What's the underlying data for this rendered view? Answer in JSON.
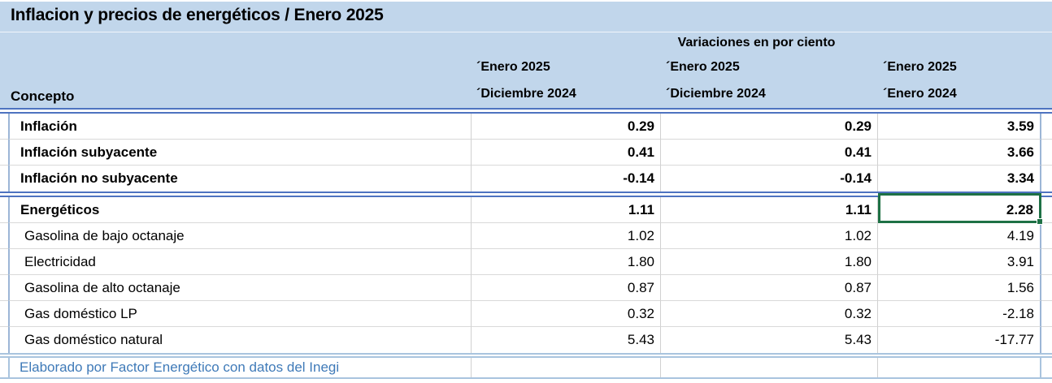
{
  "title": "Inflacion y precios de energéticos / Enero 2025",
  "header": {
    "group_label": "Variaciones en por ciento",
    "concept_label": "Concepto",
    "columns": [
      {
        "top": "´Enero 2025",
        "bottom": "´Diciembre 2024"
      },
      {
        "top": "´Enero 2025",
        "bottom": "´Diciembre 2024"
      },
      {
        "top": "´Enero 2025",
        "bottom": "´Enero 2024"
      }
    ]
  },
  "rows": [
    {
      "label": "Inflación",
      "v1": "0.29",
      "v2": "0.29",
      "v3": "3.59"
    },
    {
      "label": "Inflación subyacente",
      "v1": "0.41",
      "v2": "0.41",
      "v3": "3.66"
    },
    {
      "label": "Inflación no subyacente",
      "v1": "-0.14",
      "v2": "-0.14",
      "v3": "3.34"
    },
    {
      "label": "Energéticos",
      "v1": "1.11",
      "v2": "1.11",
      "v3": "2.28"
    },
    {
      "label": "Gasolina de bajo octanaje",
      "v1": "1.02",
      "v2": "1.02",
      "v3": "4.19"
    },
    {
      "label": "Electricidad",
      "v1": "1.80",
      "v2": "1.80",
      "v3": "3.91"
    },
    {
      "label": "Gasolina de alto octanaje",
      "v1": "0.87",
      "v2": "0.87",
      "v3": "1.56"
    },
    {
      "label": "Gas doméstico LP",
      "v1": "0.32",
      "v2": "0.32",
      "v3": "-2.18"
    },
    {
      "label": "Gas doméstico natural",
      "v1": "5.43",
      "v2": "5.43",
      "v3": "-17.77"
    }
  ],
  "selection": {
    "row": "Energéticos",
    "column": "´Enero 2025 / ´Enero 2024",
    "value": "2.28"
  },
  "footer": {
    "text": "Elaborado por Factor Energético con datos del Inegi"
  },
  "colors": {
    "header_bg": "#c1d6eb",
    "section_border": "#4e73c0",
    "body_box_border": "#9cb6d6",
    "grid_line": "#d9d9d9",
    "footer_border": "#a9c4de",
    "footer_text": "#3f7ab8",
    "selection_green": "#1e7145"
  }
}
